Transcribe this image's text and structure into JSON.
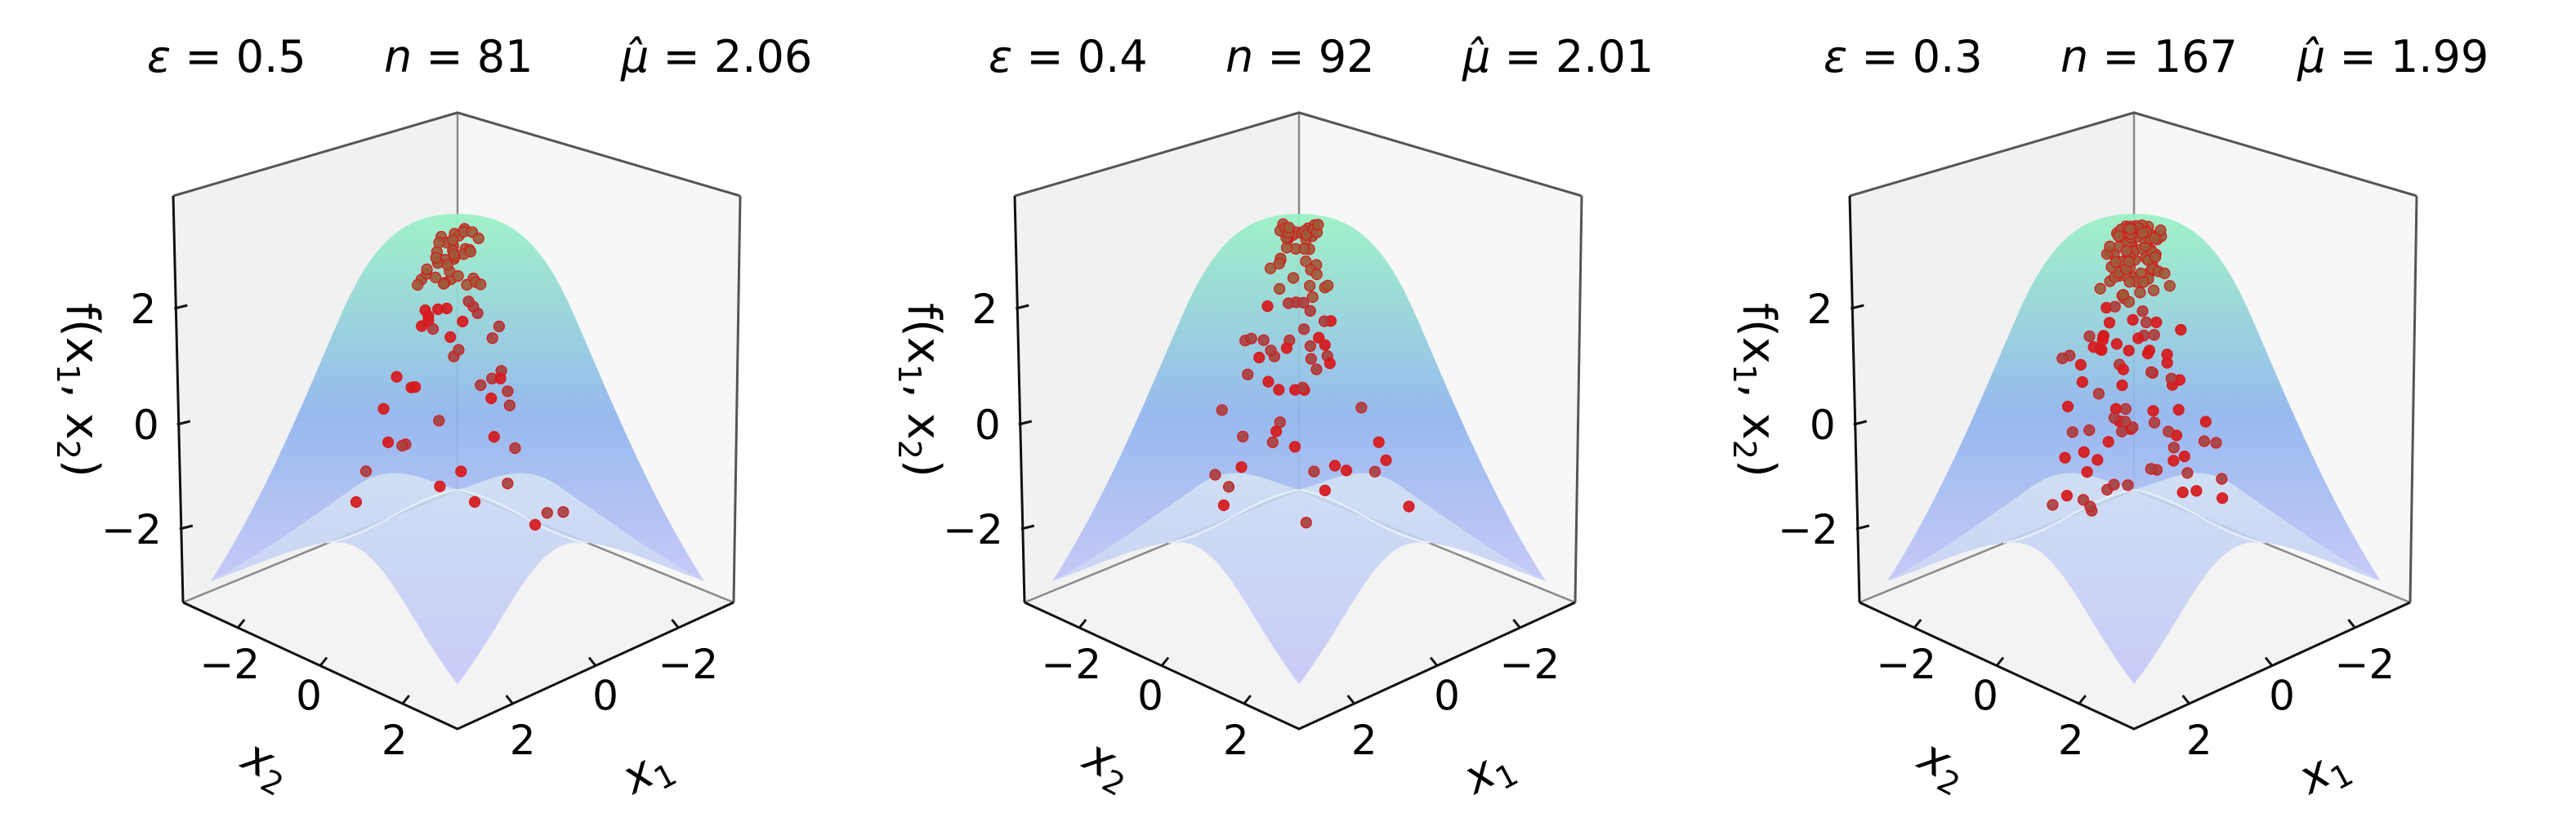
{
  "chart_data": [
    {
      "type": "scatter",
      "projection": "3d",
      "title_parts": [
        {
          "sym": "ε",
          "eq": " = 0.5"
        },
        {
          "sym": "n",
          "eq": " = 81"
        },
        {
          "sym": "μ̂",
          "eq": " = 2.06"
        }
      ],
      "xlabel": "x",
      "xlabel_sub": "1",
      "ylabel": "x",
      "ylabel_sub": "2",
      "zlabel": "f(x",
      "zlabel_sub1": "1",
      "zlabel_mid": ", x",
      "zlabel_sub2": "2",
      "zlabel_end": ")",
      "x_ticks": [
        "−2",
        "0",
        "2"
      ],
      "y_ticks": [
        "−2",
        "0",
        "2"
      ],
      "z_ticks": [
        "−2",
        "0",
        "2"
      ],
      "xlim": [
        -3,
        3
      ],
      "ylim": [
        -3,
        3
      ],
      "zlim": [
        -3.3,
        3.6
      ],
      "surface": "f(x1,x2) = 3 cos(x1/2) cos(x2/2) type bump, colored by height",
      "point_count": 81,
      "point_color": "#d7191c",
      "seed": 11
    },
    {
      "type": "scatter",
      "projection": "3d",
      "title_parts": [
        {
          "sym": "ε",
          "eq": " = 0.4"
        },
        {
          "sym": "n",
          "eq": " = 92"
        },
        {
          "sym": "μ̂",
          "eq": " = 2.01"
        }
      ],
      "xlabel": "x",
      "xlabel_sub": "1",
      "ylabel": "x",
      "ylabel_sub": "2",
      "zlabel": "f(x",
      "zlabel_sub1": "1",
      "zlabel_mid": ", x",
      "zlabel_sub2": "2",
      "zlabel_end": ")",
      "x_ticks": [
        "−2",
        "0",
        "2"
      ],
      "y_ticks": [
        "−2",
        "0",
        "2"
      ],
      "z_ticks": [
        "−2",
        "0",
        "2"
      ],
      "xlim": [
        -3,
        3
      ],
      "ylim": [
        -3,
        3
      ],
      "zlim": [
        -3.3,
        3.6
      ],
      "point_count": 92,
      "point_color": "#d7191c",
      "seed": 23
    },
    {
      "type": "scatter",
      "projection": "3d",
      "title_parts": [
        {
          "sym": "ε",
          "eq": " = 0.3"
        },
        {
          "sym": "n",
          "eq": " = 167"
        },
        {
          "sym": "μ̂",
          "eq": " = 1.99"
        }
      ],
      "xlabel": "x",
      "xlabel_sub": "1",
      "ylabel": "x",
      "ylabel_sub": "2",
      "zlabel": "f(x",
      "zlabel_sub1": "1",
      "zlabel_mid": ", x",
      "zlabel_sub2": "2",
      "zlabel_end": ")",
      "x_ticks": [
        "−2",
        "0",
        "2"
      ],
      "y_ticks": [
        "−2",
        "0",
        "2"
      ],
      "z_ticks": [
        "−2",
        "0",
        "2"
      ],
      "xlim": [
        -3,
        3
      ],
      "ylim": [
        -3,
        3
      ],
      "zlim": [
        -3.3,
        3.6
      ],
      "point_count": 167,
      "point_color": "#d7191c",
      "seed": 37
    }
  ],
  "colors": {
    "surface_top": "#98f2c4",
    "surface_mid": "#8fb4ee",
    "surface_low": "#c4c6f8",
    "pane_left": "#f1f1f1",
    "pane_right": "#f7f7f7",
    "pane_floor": "#f3f3f3",
    "edge": "#555555"
  }
}
